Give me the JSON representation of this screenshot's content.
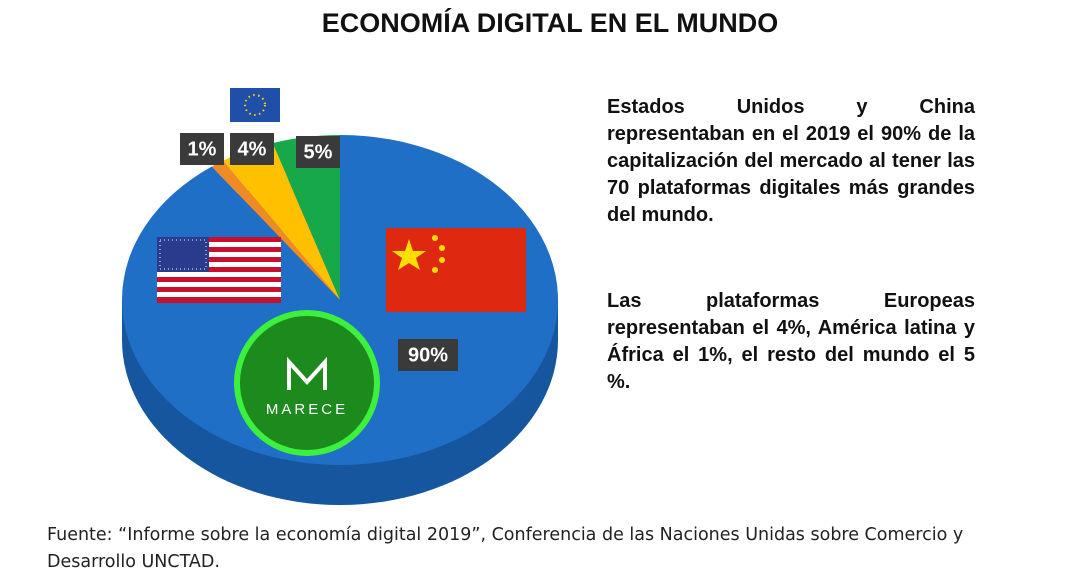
{
  "chart_data": {
    "type": "pie",
    "title": "ECONOMÍA DIGITAL EN EL MUNDO",
    "values": [
      90,
      1,
      4,
      5
    ],
    "value_labels": [
      "90%",
      "1%",
      "4%",
      "5%"
    ],
    "colors": [
      "#1f6fc6",
      "#f08a24",
      "#ffc000",
      "#17a84a"
    ],
    "annotations": [
      "Estados Unidos y China representaban en el 2019 el 90% de la capitalización del mercado al tener las 70 plataformas digitales más grandes del mundo.",
      "Las plataformas Europeas representaban el 4%, América latina y África el 1%, el resto del mundo el 5 %."
    ],
    "logo": "MARECE",
    "source": "Fuente: “Informe sobre la economía digital 2019”, Conferencia de las Naciones Unidas sobre Comercio y Desarrollo UNCTAD."
  }
}
